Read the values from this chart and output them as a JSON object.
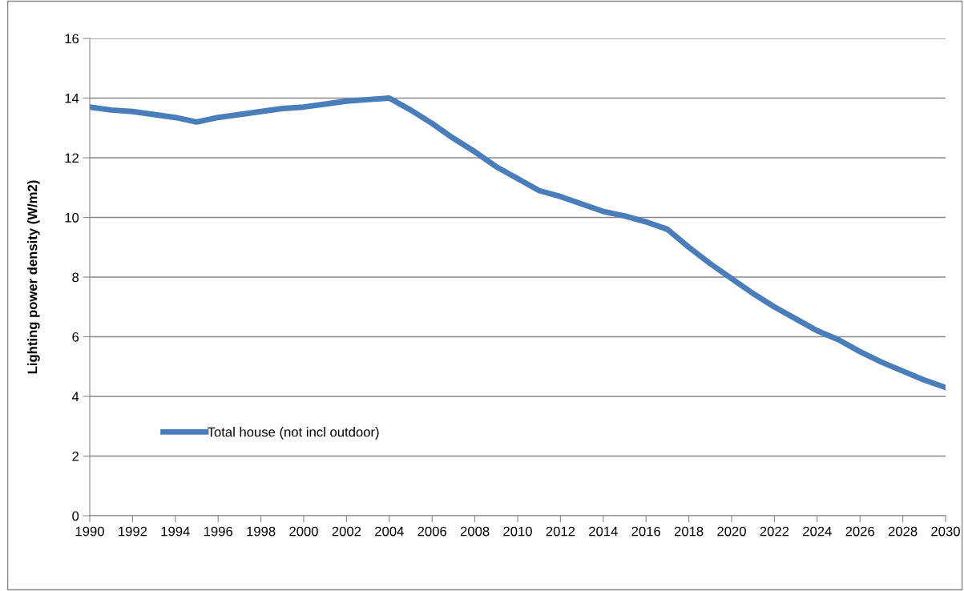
{
  "chart_data": {
    "type": "line",
    "ylabel": "Lighting power density (W/m2)",
    "x": [
      1990,
      1991,
      1992,
      1993,
      1994,
      1995,
      1996,
      1997,
      1998,
      1999,
      2000,
      2001,
      2002,
      2003,
      2004,
      2005,
      2006,
      2007,
      2008,
      2009,
      2010,
      2011,
      2012,
      2013,
      2014,
      2015,
      2016,
      2017,
      2018,
      2019,
      2020,
      2021,
      2022,
      2023,
      2024,
      2025,
      2026,
      2027,
      2028,
      2029,
      2030
    ],
    "series": [
      {
        "name": "Total house (not incl outdoor)",
        "color": "#4a7ebb",
        "values": [
          13.7,
          13.6,
          13.55,
          13.45,
          13.35,
          13.2,
          13.35,
          13.45,
          13.55,
          13.65,
          13.7,
          13.8,
          13.9,
          13.95,
          14.0,
          13.6,
          13.15,
          12.65,
          12.2,
          11.7,
          11.3,
          10.9,
          10.7,
          10.45,
          10.2,
          10.05,
          9.85,
          9.6,
          9.0,
          8.45,
          7.95,
          7.45,
          7.0,
          6.6,
          6.2,
          5.9,
          5.5,
          5.15,
          4.85,
          4.55,
          4.3
        ]
      }
    ],
    "xlim": [
      1990,
      2030
    ],
    "xticks": [
      1990,
      1992,
      1994,
      1996,
      1998,
      2000,
      2002,
      2004,
      2006,
      2008,
      2010,
      2012,
      2014,
      2016,
      2018,
      2020,
      2022,
      2024,
      2026,
      2028,
      2030
    ],
    "ylim": [
      0,
      16
    ],
    "yticks": [
      0,
      2,
      4,
      6,
      8,
      10,
      12,
      14,
      16
    ],
    "grid": "y",
    "legend": "left",
    "marker": "none",
    "line_style": "solid"
  }
}
